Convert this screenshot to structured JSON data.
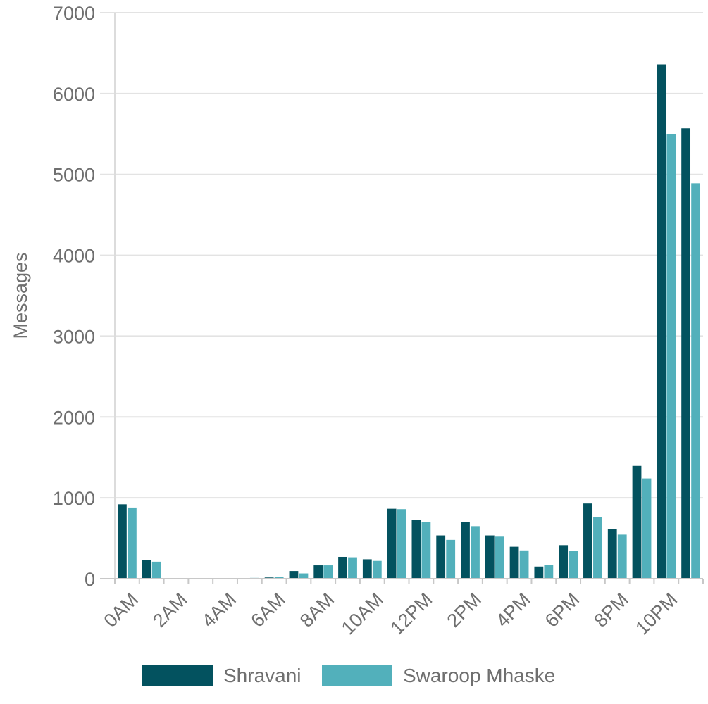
{
  "chart_data": {
    "type": "bar",
    "ylabel": "Messages",
    "xlabel": "",
    "ylim": [
      0,
      7000
    ],
    "yticks": [
      "0",
      "1000",
      "2000",
      "3000",
      "4000",
      "5000",
      "6000",
      "7000"
    ],
    "categories": [
      "0AM",
      "1AM",
      "2AM",
      "3AM",
      "4AM",
      "5AM",
      "6AM",
      "7AM",
      "8AM",
      "9AM",
      "10AM",
      "11AM",
      "12PM",
      "1PM",
      "2PM",
      "3PM",
      "4PM",
      "5PM",
      "6PM",
      "7PM",
      "8PM",
      "9PM",
      "10PM",
      "11PM"
    ],
    "xtick_labels": [
      "0AM",
      "2AM",
      "4AM",
      "6AM",
      "8AM",
      "10AM",
      "12PM",
      "2PM",
      "4PM",
      "6PM",
      "8PM",
      "10PM"
    ],
    "grid": true,
    "legend_position": "bottom",
    "series": [
      {
        "name": "Shravani",
        "color": "#03525f",
        "values": [
          920,
          230,
          5,
          5,
          5,
          5,
          15,
          95,
          165,
          270,
          240,
          865,
          725,
          535,
          700,
          535,
          395,
          150,
          415,
          930,
          610,
          1395,
          6360,
          5570
        ]
      },
      {
        "name": "Swaroop Mhaske",
        "color": "#52b0bb",
        "values": [
          880,
          210,
          5,
          5,
          5,
          10,
          20,
          65,
          165,
          265,
          220,
          860,
          705,
          480,
          650,
          520,
          350,
          170,
          345,
          765,
          545,
          1240,
          5500,
          4890
        ]
      }
    ]
  }
}
